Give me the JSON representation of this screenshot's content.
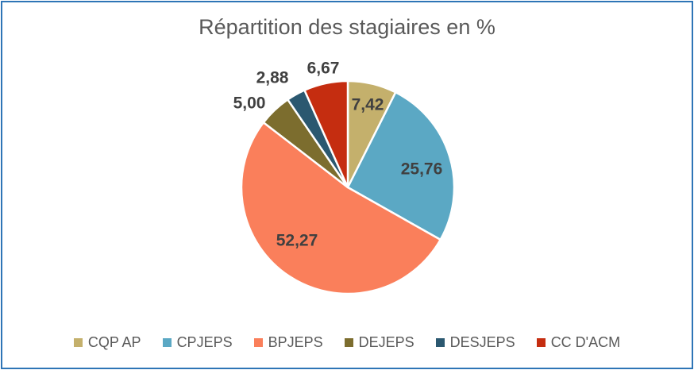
{
  "chart_data": {
    "type": "pie",
    "title": "Répartition des stagiaires en %",
    "categories": [
      "CQP AP",
      "CPJEPS",
      "BPJEPS",
      "DEJEPS",
      "DESJEPS",
      "CC D'ACM"
    ],
    "values": [
      7.42,
      25.76,
      52.27,
      5.0,
      2.88,
      6.67
    ],
    "value_labels": [
      "7,42",
      "25,76",
      "52,27",
      "5,00",
      "2,88",
      "6,67"
    ],
    "colors": [
      "#c4b06c",
      "#5ba8c4",
      "#fa7f5b",
      "#7c6d2e",
      "#2b5870",
      "#c52d10"
    ],
    "legend_position": "bottom"
  }
}
